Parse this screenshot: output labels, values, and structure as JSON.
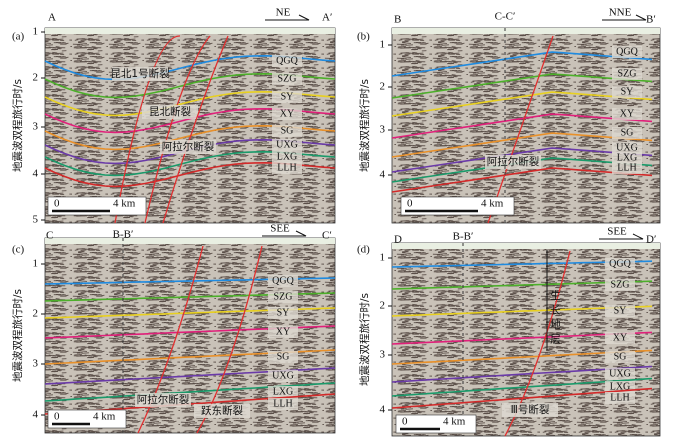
{
  "panels": [
    {
      "label": "(a)",
      "left": "A",
      "right": "A′",
      "direction": "NE",
      "y_axis_title": "地震波双程旅行时/s",
      "yticks": [
        1,
        2,
        3,
        4,
        5
      ],
      "horizons": [
        "QGQ",
        "SZG",
        "SY",
        "XY",
        "SG",
        "UXG",
        "LXG",
        "LLH"
      ],
      "faults": [
        "昆北1号断裂",
        "昆北断裂",
        "阿拉尔断裂"
      ],
      "scale": {
        "start": "0",
        "end": "4 km"
      }
    },
    {
      "label": "(b)",
      "left": "B",
      "right": "B′",
      "direction": "NNE",
      "section_mark": "C-C′",
      "y_axis_title": "地震波双程旅行时/s",
      "yticks": [
        1,
        2,
        3,
        4
      ],
      "horizons": [
        "QGQ",
        "SZG",
        "SY",
        "XY",
        "SG",
        "UXG",
        "LXG",
        "LLH"
      ],
      "faults": [
        "阿拉尔断裂"
      ],
      "scale": {
        "start": "0",
        "end": "4 km"
      }
    },
    {
      "label": "(c)",
      "left": "C",
      "right": "C′",
      "direction": "SEE",
      "section_mark": "B-B′",
      "y_axis_title": "地震波双程旅行时/s",
      "yticks": [
        1,
        2,
        3,
        4
      ],
      "horizons": [
        "QGQ",
        "SZG",
        "SY",
        "XY",
        "SG",
        "UXG",
        "LXG",
        "LLH"
      ],
      "faults": [
        "阿拉尔断裂",
        "跃东断裂"
      ],
      "scale": {
        "start": "0",
        "end": "4 km"
      }
    },
    {
      "label": "(d)",
      "left": "D",
      "right": "D′",
      "direction": "SEE",
      "section_mark": "B-B′",
      "y_axis_title": "地震波双程旅行时/s",
      "yticks": [
        1,
        2,
        3,
        4
      ],
      "horizons": [
        "QGQ",
        "SZG",
        "SY",
        "XY",
        "SG",
        "UXG",
        "LXG",
        "LLH"
      ],
      "faults": [
        "Ⅲ号断裂"
      ],
      "growth_strata": "生长地层",
      "scale": {
        "start": "0",
        "end": "4 km"
      }
    }
  ]
}
